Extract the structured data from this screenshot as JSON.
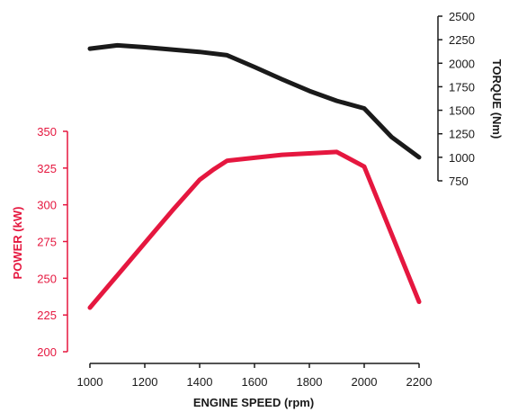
{
  "chart_data": {
    "type": "line",
    "title": "",
    "xlabel": "ENGINE SPEED (rpm)",
    "xlim": [
      1000,
      2200
    ],
    "x_ticks": [
      "1000",
      "1200",
      "1400",
      "1600",
      "1800",
      "2000",
      "2200"
    ],
    "y_left": {
      "label": "POWER (kW)",
      "ylim": [
        200,
        350
      ],
      "ticks": [
        "200",
        "225",
        "250",
        "275",
        "300",
        "325",
        "350"
      ],
      "color": "#e5173f"
    },
    "y_right": {
      "label": "TORQUE (Nm)",
      "ylim": [
        750,
        2500
      ],
      "ticks": [
        "750",
        "1000",
        "1250",
        "1500",
        "1750",
        "2000",
        "2250",
        "2500"
      ],
      "color": "#1a1a1a"
    },
    "grid": false,
    "legend": "none",
    "series": [
      {
        "axis": "right",
        "color": "#1a1a1a",
        "x": [
          1000,
          1100,
          1200,
          1300,
          1400,
          1500,
          1600,
          1700,
          1800,
          1900,
          2000,
          2100,
          2200
        ],
        "y": [
          2155,
          2190,
          2170,
          2145,
          2120,
          2085,
          1960,
          1830,
          1705,
          1600,
          1520,
          1215,
          1000
        ]
      },
      {
        "axis": "left",
        "color": "#e5173f",
        "x": [
          1000,
          1100,
          1200,
          1300,
          1400,
          1450,
          1500,
          1600,
          1700,
          1800,
          1900,
          2000,
          2100,
          2200
        ],
        "y": [
          230,
          252,
          274,
          296,
          317,
          324,
          330,
          332,
          334,
          335,
          336,
          326,
          280,
          234
        ]
      }
    ]
  }
}
